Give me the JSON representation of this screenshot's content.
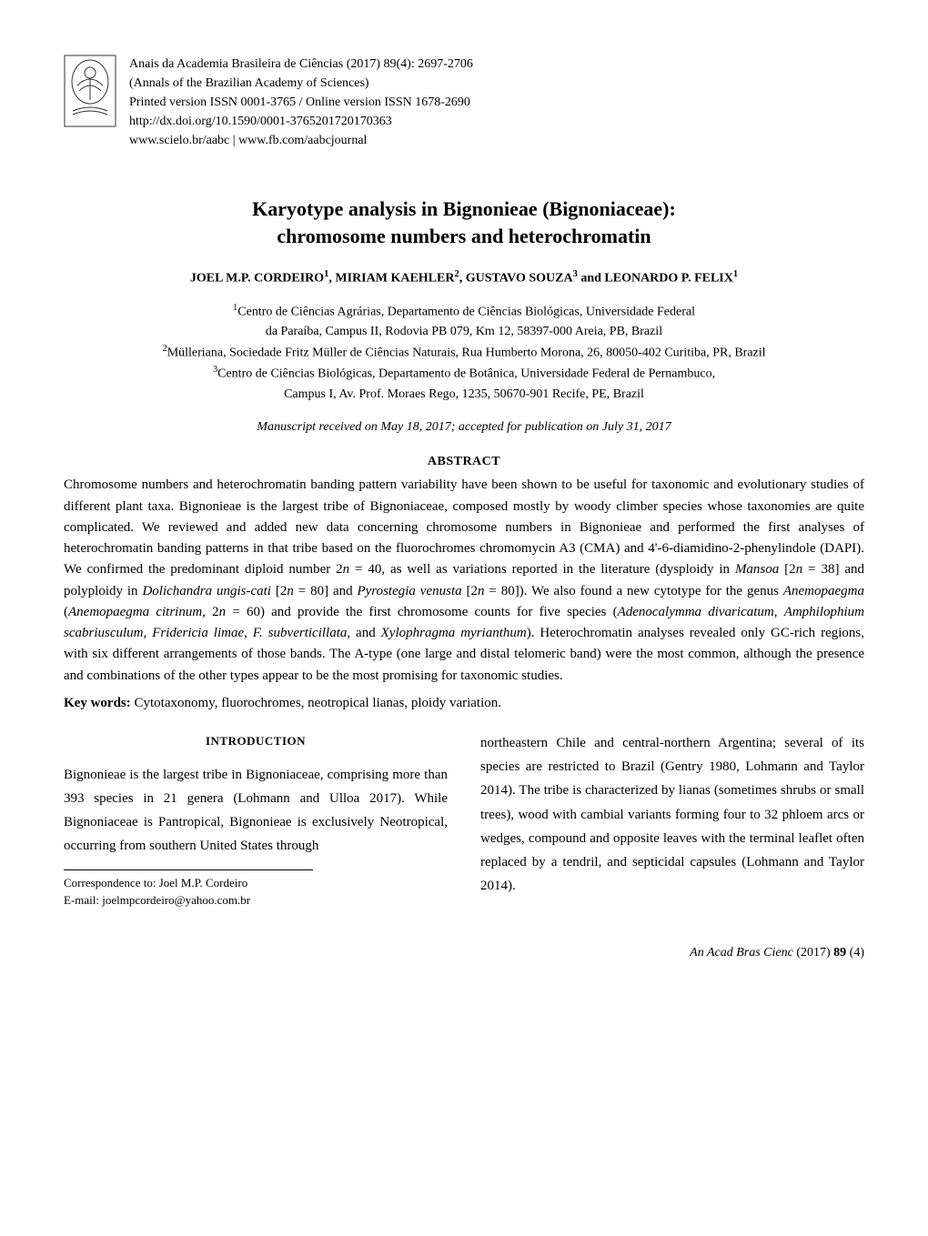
{
  "header": {
    "journal_citation": "Anais da Academia Brasileira de Ciências (2017) 89(4): 2697-2706",
    "journal_en": "(Annals of the Brazilian Academy of Sciences)",
    "issn": "Printed version ISSN 0001-3765 / Online version ISSN 1678-2690",
    "doi": "http://dx.doi.org/10.1590/0001-3765201720170363",
    "urls": "www.scielo.br/aabc  |  www.fb.com/aabcjournal"
  },
  "title_line1": "Karyotype analysis in Bignonieae (Bignoniaceae):",
  "title_line2": "chromosome numbers and heterochromatin",
  "authors_html": "JOEL M.P. CORDEIRO<sup>1</sup>, MIRIAM KAEHLER<sup>2</sup>, GUSTAVO SOUZA<sup>3</sup> and LEONARDO P. FELIX<sup>1</sup>",
  "affiliations": {
    "a1_l1": "<sup>1</sup>Centro de Ciências Agrárias, Departamento de Ciências Biológicas, Universidade Federal",
    "a1_l2": "da Paraíba, Campus II, Rodovia PB 079, Km 12, 58397-000 Areia, PB, Brazil",
    "a2": "<sup>2</sup>Mülleriana, Sociedade Fritz Müller de Ciências Naturais, Rua Humberto Morona, 26, 80050-402 Curitiba, PR, Brazil",
    "a3_l1": "<sup>3</sup>Centro de Ciências Biológicas, Departamento de Botânica, Universidade Federal de Pernambuco,",
    "a3_l2": "Campus I, Av. Prof. Moraes Rego, 1235, 50670-901 Recife, PE, Brazil"
  },
  "manuscript_date": "Manuscript received on May 18, 2017; accepted for publication on July 31, 2017",
  "abstract_heading": "ABSTRACT",
  "abstract_html": "Chromosome numbers and heterochromatin banding pattern variability have been shown to be useful for taxonomic and evolutionary studies of different plant taxa. Bignonieae is the largest tribe of Bignoniaceae, composed mostly by woody climber species whose taxonomies are quite complicated. We reviewed and added new data concerning chromosome numbers in Bignonieae and performed the first analyses of heterochromatin banding patterns in that tribe based on the fluorochromes chromomycin A3 (CMA) and 4'-6-diamidino-2-phenylindole (DAPI). We confirmed the predominant diploid number 2<i>n</i> = 40, as well as variations reported in the literature (dysploidy in <i>Mansoa</i> [2<i>n</i> = 38] and polyploidy in <i>Dolichandra ungis-cati</i> [2<i>n</i> = 80] and <i>Pyrostegia venusta</i> [2<i>n</i> = 80]). We also found a new cytotype for the genus <i>Anemopaegma</i> (<i>Anemopaegma citrinum</i>, 2<i>n</i> = 60) and provide the first chromosome counts for five species (<i>Adenocalymma divaricatum</i>, <i>Amphilophium scabriusculum</i>, <i>Fridericia limae</i>, <i>F. subverticillata</i>, and <i>Xylophragma myrianthum</i>). Heterochromatin analyses revealed only GC-rich regions, with six different arrangements of those bands. The A-type (one large and distal telomeric band) were the most common, although the presence and combinations of the other types appear to be the most promising for taxonomic studies.",
  "keywords_label": "Key words:",
  "keywords_text": " Cytotaxonomy, fluorochromes, neotropical lianas, ploidy variation.",
  "intro_heading": "INTRODUCTION",
  "col_left": "Bignonieae is the largest tribe in Bignoniaceae, comprising more than 393 species in 21 genera (Lohmann and Ulloa 2017). While Bignoniaceae is Pantropical, Bignonieae is exclusively Neotropical, occurring from southern United States through",
  "col_right": "northeastern Chile and central-northern Argentina; several of its species are restricted to Brazil (Gentry 1980, Lohmann and Taylor 2014). The tribe is characterized by lianas (sometimes shrubs or small trees), wood with cambial variants forming four to 32 phloem arcs or wedges, compound and opposite leaves with the terminal leaflet often replaced by a tendril, and septicidal capsules (Lohmann and Taylor 2014).",
  "correspondence": {
    "to": "Correspondence to: Joel M.P. Cordeiro",
    "email": "E-mail: joelmpcordeiro@yahoo.com.br"
  },
  "footer": {
    "journal_abbrev": "An Acad Bras Cienc",
    "year": " (2017) ",
    "volume": "89",
    "issue": " (4)"
  },
  "logo": {
    "stroke": "#333333",
    "fill": "#ffffff"
  }
}
